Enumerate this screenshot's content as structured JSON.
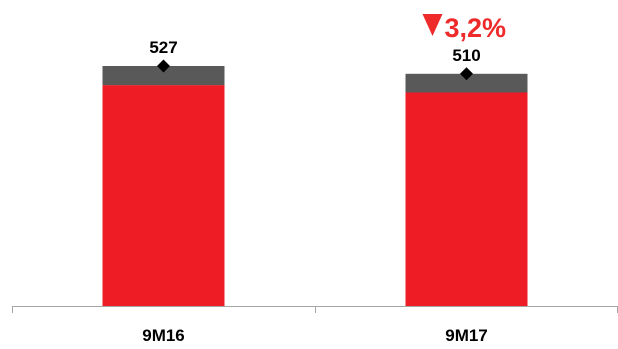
{
  "chart_data": {
    "type": "bar",
    "stacked": true,
    "categories": [
      "9M16",
      "9M17"
    ],
    "series": [
      {
        "color": "#ee1c25",
        "values": [
          485,
          469
        ]
      },
      {
        "color": "#595959",
        "values": [
          42,
          41
        ]
      }
    ],
    "totals": [
      527,
      510
    ],
    "total_labels": [
      "527",
      "510"
    ],
    "change": {
      "text": "3,2%",
      "direction": "down",
      "color": "#ee2a2a"
    },
    "ylim": [
      0,
      650
    ],
    "grid": false,
    "legend": "none"
  }
}
